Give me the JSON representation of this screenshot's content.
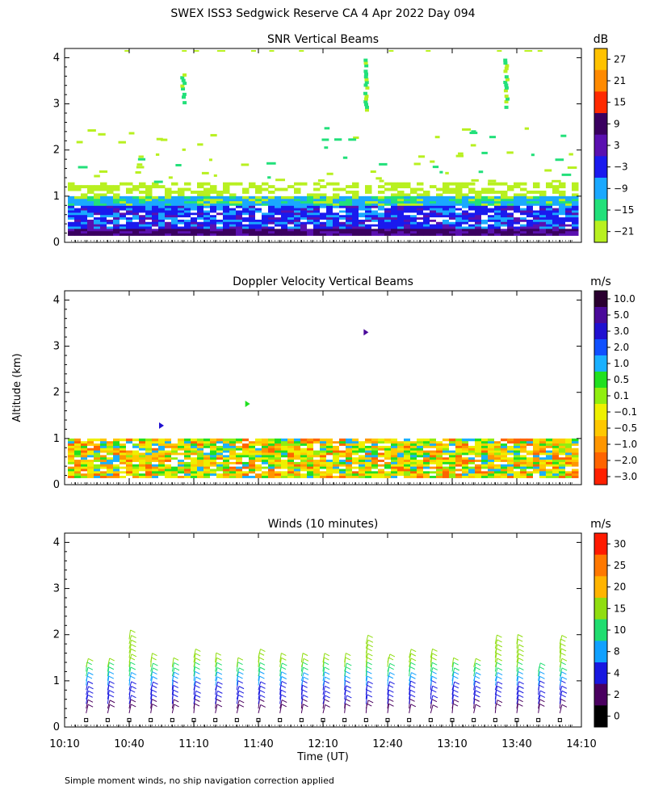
{
  "figure": {
    "title": "SWEX ISS3 Sedgwick Reserve CA    4 Apr 2022 Day 094",
    "ylabel": "Altitude (km)",
    "xlabel": "Time (UT)",
    "footnote": "Simple moment winds, no ship navigation correction applied",
    "xtick_labels": [
      "10:10",
      "10:40",
      "11:10",
      "11:40",
      "12:10",
      "12:40",
      "13:10",
      "13:40",
      "14:10"
    ],
    "ytick_labels": [
      "0",
      "1",
      "2",
      "3",
      "4"
    ]
  },
  "chart_data": [
    {
      "type": "heatmap",
      "title": "SNR Vertical Beams",
      "units": "dB",
      "xlim": [
        "10:10",
        "14:10"
      ],
      "ylim": [
        0,
        4
      ],
      "colorbar": {
        "labels": [
          "27",
          "21",
          "15",
          "9",
          "3",
          "−3",
          "−9",
          "−15",
          "−21"
        ],
        "colors": [
          "#ffc200",
          "#ff8a00",
          "#ff2a00",
          "#3a0060",
          "#5a10b0",
          "#1a1aee",
          "#1aa8ff",
          "#22e07a",
          "#b8f020"
        ]
      },
      "bands": [
        {
          "name": "strong-return",
          "alt_km": [
            0.15,
            0.3
          ],
          "snr_db": 9
        },
        {
          "name": "boundary-layer",
          "alt_km": [
            0.3,
            0.8
          ],
          "snr_db": -3
        },
        {
          "name": "upper-mixed",
          "alt_km": [
            0.8,
            1.0
          ],
          "snr_db": -9
        },
        {
          "name": "weak-top",
          "alt_km": [
            1.0,
            1.3
          ],
          "snr_db": -21
        }
      ],
      "columns": [
        {
          "time": "11:05",
          "alt_km": [
            3.0,
            3.7
          ],
          "snr_db": -15
        },
        {
          "time": "12:30",
          "alt_km": [
            2.9,
            4.0
          ],
          "snr_db": -15
        },
        {
          "time": "13:35",
          "alt_km": [
            2.9,
            4.0
          ],
          "snr_db": -15
        }
      ]
    },
    {
      "type": "heatmap",
      "title": "Doppler Velocity Vertical Beams",
      "units": "m/s",
      "xlim": [
        "10:10",
        "14:10"
      ],
      "ylim": [
        0,
        4
      ],
      "colorbar": {
        "labels": [
          "10.0",
          "5.0",
          "3.0",
          "2.0",
          "1.0",
          "0.5",
          "0.1",
          "−0.1",
          "−0.5",
          "−1.0",
          "−2.0",
          "−3.0"
        ],
        "colors": [
          "#2a0030",
          "#4a0a9a",
          "#2010d0",
          "#1050ff",
          "#1ab0ff",
          "#20e020",
          "#90ee10",
          "#eef000",
          "#ffc800",
          "#ff9600",
          "#ff6400",
          "#ff2000"
        ]
      },
      "bands": [
        {
          "name": "main-layer",
          "alt_km": [
            0.15,
            1.0
          ],
          "velocity_ms": -0.1
        }
      ],
      "features": [
        {
          "time": "12:30",
          "alt_km": 3.3,
          "velocity_ms": 5.0
        },
        {
          "time": "11:35",
          "alt_km": 1.75,
          "velocity_ms": 0.5
        },
        {
          "time": "10:55",
          "alt_km": 1.28,
          "velocity_ms": 3.0
        }
      ]
    },
    {
      "type": "wind-barbs",
      "title": "Winds (10 minutes)",
      "units": "m/s",
      "xlim": [
        "10:10",
        "14:10"
      ],
      "ylim": [
        0,
        4
      ],
      "colorbar": {
        "labels": [
          "30",
          "25",
          "20",
          "15",
          "10",
          "8",
          "4",
          "2",
          "0"
        ],
        "colors": [
          "#ff1a00",
          "#ff7800",
          "#ffb400",
          "#90dd10",
          "#20dd70",
          "#10a0ff",
          "#1818e0",
          "#4a0060",
          "#000000"
        ]
      },
      "profiles": [
        {
          "time": "10:20",
          "top_km": 1.4
        },
        {
          "time": "10:30",
          "top_km": 1.4
        },
        {
          "time": "10:40",
          "top_km": 2.0
        },
        {
          "time": "10:50",
          "top_km": 1.5
        },
        {
          "time": "11:00",
          "top_km": 1.3
        },
        {
          "time": "11:10",
          "top_km": 1.6
        },
        {
          "time": "11:20",
          "top_km": 1.5
        },
        {
          "time": "11:30",
          "top_km": 1.4
        },
        {
          "time": "11:40",
          "top_km": 1.6
        },
        {
          "time": "11:50",
          "top_km": 1.5
        },
        {
          "time": "12:00",
          "top_km": 1.5
        },
        {
          "time": "12:10",
          "top_km": 1.5
        },
        {
          "time": "12:20",
          "top_km": 1.5
        },
        {
          "time": "12:30",
          "top_km": 1.9
        },
        {
          "time": "12:40",
          "top_km": 1.5
        },
        {
          "time": "12:50",
          "top_km": 1.6
        },
        {
          "time": "13:00",
          "top_km": 1.6
        },
        {
          "time": "13:10",
          "top_km": 1.4
        },
        {
          "time": "13:20",
          "top_km": 1.3
        },
        {
          "time": "13:30",
          "top_km": 1.9
        },
        {
          "time": "13:40",
          "top_km": 1.9
        },
        {
          "time": "13:50",
          "top_km": 1.2
        },
        {
          "time": "14:00",
          "top_km": 1.9
        }
      ]
    }
  ]
}
